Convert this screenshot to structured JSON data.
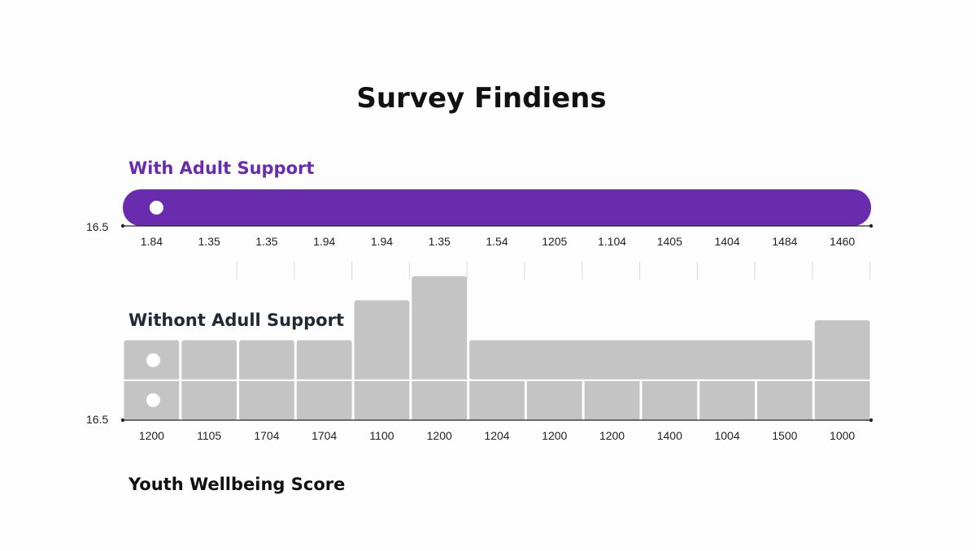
{
  "chart_data": {
    "type": "bar",
    "title": "Survey Findiens",
    "xlabel": "Youth Wellbeing Score",
    "colors": {
      "with_support": "#6a2cae",
      "without_support": "#c4c4c4",
      "title": "#111111",
      "without_label": "#1f2a36"
    },
    "panels": [
      {
        "name": "With Adult Support",
        "axis_value": "16.5",
        "bar": {
          "start_index": 0,
          "end_index": 12,
          "rounded": true
        },
        "markers": [
          {
            "index": 0
          }
        ],
        "tick_labels": [
          "1.84",
          "1.35",
          "1.35",
          "1.94",
          "1.94",
          "1.35",
          "1.54",
          "1205",
          "1.104",
          "1405",
          "1404",
          "1484",
          "1460"
        ]
      },
      {
        "name": "Withont Adull Support",
        "axis_value": "16.5",
        "ylim": [
          0,
          3.6
        ],
        "values": [
          2,
          2,
          2,
          2,
          3,
          3.6,
          2,
          2,
          2,
          2,
          2,
          2,
          2.5
        ],
        "merged_top_range": [
          6,
          11
        ],
        "inner_divider_value": 1,
        "markers": [
          {
            "index": 0,
            "value": 1.5
          },
          {
            "index": 0,
            "value": 0.5
          }
        ],
        "tick_labels": [
          "1200",
          "1105",
          "1704",
          "1704",
          "1100",
          "1200",
          "1204",
          "1200",
          "1200",
          "1400",
          "1004",
          "1500",
          "1000"
        ]
      }
    ]
  }
}
